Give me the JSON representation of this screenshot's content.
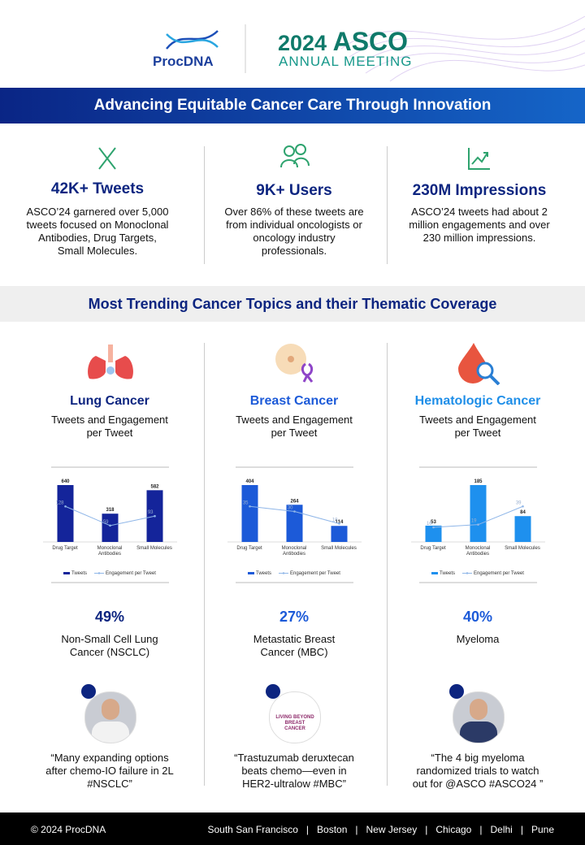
{
  "header": {
    "logo": "ProcDNA",
    "event_year": "2024",
    "event_name": "ASCO",
    "event_subtitle": "ANNUAL MEETING"
  },
  "banner": {
    "title": "Advancing Equitable Cancer Care Through Innovation"
  },
  "stats": [
    {
      "title": "42K+ Tweets",
      "text": "ASCO’24 garnered over 5,000 tweets focused on Monoclonal Antibodies, Drug Targets, Small Molecules."
    },
    {
      "title": "9K+ Users",
      "text": "Over 86% of these tweets are from individual oncologists or oncology industry professionals."
    },
    {
      "title": "230M Impressions",
      "text": "ASCO’24 tweets had about 2 million engagements and over 230 million impressions."
    }
  ],
  "section": {
    "title": "Most Trending Cancer Topics and their Thematic Coverage"
  },
  "topics": [
    {
      "name": "Lung Cancer",
      "subtitle": "Tweets and Engagement per Tweet",
      "chart": {
        "type": "bar",
        "categories": [
          "Drug Target",
          "Monoclonal Antibodies",
          "Small Molecules"
        ],
        "series": [
          {
            "name": "Tweets",
            "color": "#14249a",
            "values": [
              640,
              318,
              582
            ]
          },
          {
            "name": "Engagement per Tweet",
            "color": "#8fb6e8",
            "axis": "y2",
            "values": [
              128,
              59,
              93
            ]
          }
        ]
      },
      "percent": "49%",
      "subtype": "Non-Small Cell Lung Cancer (NSCLC)",
      "quote": {
        "text": "“Many expanding options after chemo-IO failure in 2L #NSCLC”"
      }
    },
    {
      "name": "Breast Cancer",
      "subtitle": "Tweets and Engagement per Tweet",
      "chart": {
        "type": "bar",
        "categories": [
          "Drug Target",
          "Monoclonal Antibodies",
          "Small Molecules"
        ],
        "series": [
          {
            "name": "Tweets",
            "color": "#1c5ad8",
            "values": [
              404,
              264,
              114
            ]
          },
          {
            "name": "Engagement per Tweet",
            "color": "#8fb6e8",
            "axis": "y2",
            "values": [
              35,
              30,
              18
            ]
          }
        ]
      },
      "percent": "27%",
      "subtype": "Metastatic Breast Cancer (MBC)",
      "quote": {
        "logo_text": "LIVING BEYOND BREAST CANCER",
        "text": "“Trastuzumab deruxtecan beats chemo—even in HER2-ultralow #MBC”"
      }
    },
    {
      "name": "Hematologic Cancer",
      "subtitle": "Tweets and Engagement per Tweet",
      "chart": {
        "type": "bar",
        "categories": [
          "Drug Target",
          "Monoclonal Antibodies",
          "Small Molecules"
        ],
        "series": [
          {
            "name": "Tweets",
            "color": "#1e90ee",
            "values": [
              53,
              185,
              84
            ]
          },
          {
            "name": "Engagement per Tweet",
            "color": "#8fb6e8",
            "axis": "y2",
            "values": [
              16,
              19,
              39
            ]
          }
        ]
      },
      "percent": "40%",
      "subtype": "Myeloma",
      "quote": {
        "text": "“The 4 big myeloma randomized trials to watch out for @ASCO #ASCO24 ”"
      }
    }
  ],
  "footer": {
    "copyright": "© 2024 ProcDNA",
    "locations": [
      "South San Francisco",
      "Boston",
      "New Jersey",
      "Chicago",
      "Delhi",
      "Pune"
    ]
  }
}
